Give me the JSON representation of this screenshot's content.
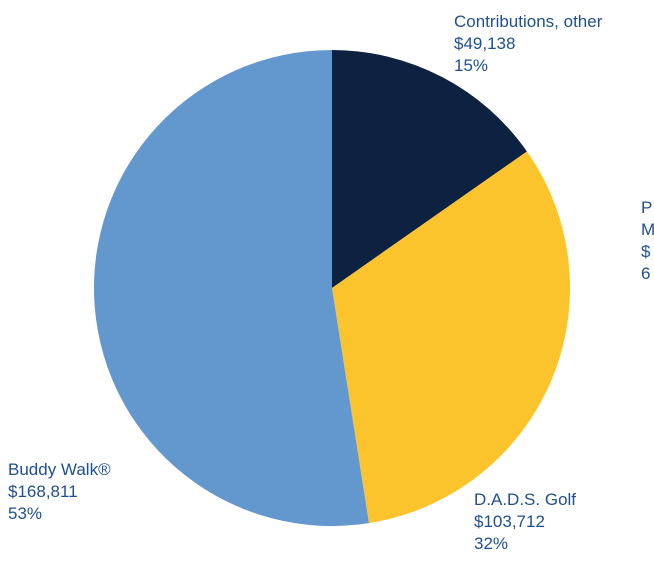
{
  "chart_data": {
    "type": "pie",
    "start_angle_deg": 0,
    "direction": "clockwise",
    "slices": [
      {
        "name": "Contributions, other",
        "value": 49138,
        "value_label": "$49,138",
        "percent_label": "15%",
        "color": "#0c2240"
      },
      {
        "name": "D.A.D.S. Golf",
        "value": 103712,
        "value_label": "$103,712",
        "percent_label": "32%",
        "color": "#fcc42c"
      },
      {
        "name": "Buddy Walk®",
        "value": 168811,
        "value_label": "$168,811",
        "percent_label": "53%",
        "color": "#6398cf"
      }
    ],
    "clipped_label": {
      "lines": [
        "P",
        "M",
        "$",
        "6"
      ]
    },
    "label_color": "#1f4f8f"
  }
}
